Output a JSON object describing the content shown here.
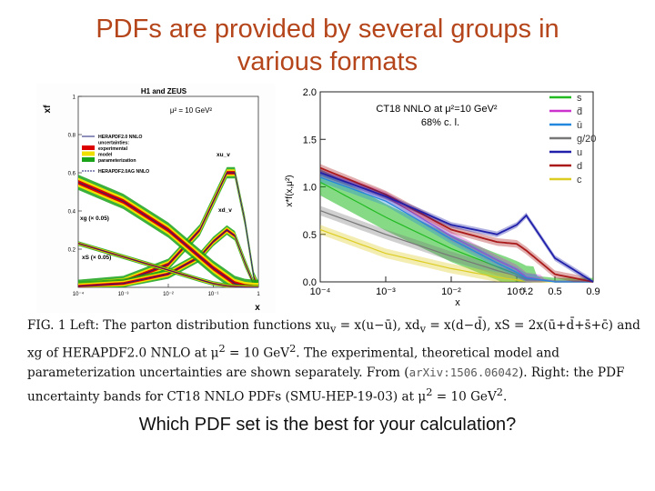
{
  "slide": {
    "title_line1": "PDFs are provided by several groups in",
    "title_line2": "various formats",
    "question": "Which PDF set is the best for your calculation?"
  },
  "caption": {
    "part1": "FIG. 1 Left: The parton distribution functions xu",
    "part1b": "v",
    "part1c": " = x(u−ū), xd",
    "part1d": "v",
    "part1e": " = x(d−d̄), xS = 2x(ū+d̄+s̄+c̄) and xg of HERAPDF2.0 NNLO at μ",
    "part1f": "2",
    "part1g": " = 10 GeV",
    "part1h": "2",
    "part1i": ". The experimental, theoretical model and parameterization uncertainties are shown separately. From (",
    "arxiv": "arXiv:1506.06042",
    "part2": "). Right: the PDF uncertainty bands for CT18 NNLO PDFs (SMU-HEP-19-03) at μ",
    "part2b": "2",
    "part2c": " = 10 GeV",
    "part2d": "2",
    "part2e": "."
  },
  "chart_data": [
    {
      "type": "line",
      "title": "H1 and ZEUS",
      "subtitle": "μ² = 10 GeV²",
      "xlabel": "x",
      "ylabel": "xf",
      "x_scale": "log",
      "xlim": [
        0.0001,
        1
      ],
      "ylim": [
        0,
        1
      ],
      "x_ticks": [
        "10⁻⁴",
        "10⁻³",
        "10⁻²",
        "10⁻¹",
        "1"
      ],
      "y_ticks": [
        "0.2",
        "0.4",
        "0.6",
        "0.8",
        "1"
      ],
      "legend": [
        "HERAPDF2.0 NNLO",
        "uncertainties:",
        "experimental",
        "model",
        "parameterization",
        "HERAPDF2.0AG NNLO"
      ],
      "legend_colors": [
        "#1f1f7a",
        "#000000",
        "#dd0000",
        "#f0e000",
        "#19a319",
        "#1f1f7a"
      ],
      "annotations": [
        "xu_v",
        "xd_v",
        "xg (× 0.05)",
        "xS (× 0.05)"
      ],
      "series": [
        {
          "name": "xu_v",
          "x": [
            0.0001,
            0.001,
            0.01,
            0.05,
            0.1,
            0.2,
            0.3,
            0.5,
            0.8,
            1.0
          ],
          "values": [
            0.01,
            0.03,
            0.12,
            0.3,
            0.45,
            0.6,
            0.6,
            0.35,
            0.05,
            0.0
          ]
        },
        {
          "name": "xd_v",
          "x": [
            0.0001,
            0.001,
            0.01,
            0.05,
            0.1,
            0.2,
            0.3,
            0.5,
            0.8,
            1.0
          ],
          "values": [
            0.005,
            0.02,
            0.07,
            0.16,
            0.24,
            0.3,
            0.27,
            0.13,
            0.01,
            0.0
          ]
        },
        {
          "name": "xg (× 0.05)",
          "x": [
            0.0001,
            0.001,
            0.01,
            0.05,
            0.1,
            0.2,
            0.3,
            0.5,
            0.8,
            1.0
          ],
          "values": [
            0.55,
            0.45,
            0.3,
            0.16,
            0.1,
            0.05,
            0.02,
            0.005,
            0.0,
            0.0
          ]
        },
        {
          "name": "xS (× 0.05)",
          "x": [
            0.0001,
            0.001,
            0.01,
            0.05,
            0.1,
            0.2,
            0.3,
            0.5,
            0.8,
            1.0
          ],
          "values": [
            0.23,
            0.16,
            0.09,
            0.04,
            0.02,
            0.008,
            0.004,
            0.001,
            0.0,
            0.0
          ]
        }
      ]
    },
    {
      "type": "line",
      "title": "CT18 NNLO at μ²=10 GeV²",
      "subtitle": "68% c. l.",
      "xlabel": "x",
      "ylabel": "x*f(x,μ²)",
      "xlim": [
        0.0001,
        0.9
      ],
      "ylim": [
        0,
        2.0
      ],
      "x_ticks": [
        "10⁻⁴",
        "10⁻³",
        "10⁻²",
        "10⁻¹",
        "0.2",
        "0.5",
        "0.9"
      ],
      "y_ticks": [
        "0.0",
        "0.5",
        "1.0",
        "1.5",
        "2.0"
      ],
      "legend_position": "top-right",
      "legend": [
        "s",
        "d̄",
        "ū",
        "g/20",
        "u",
        "d",
        "c"
      ],
      "series": [
        {
          "name": "s",
          "color": "#22bb22",
          "x": [
            0.0001,
            0.001,
            0.01,
            0.05,
            0.1,
            0.2,
            0.5,
            0.9
          ],
          "values": [
            1.05,
            0.68,
            0.35,
            0.16,
            0.08,
            0.03,
            0.0,
            0.0
          ]
        },
        {
          "name": "d̄",
          "color": "#cc33cc",
          "x": [
            0.0001,
            0.001,
            0.01,
            0.05,
            0.1,
            0.2,
            0.5,
            0.9
          ],
          "values": [
            1.15,
            0.9,
            0.48,
            0.23,
            0.13,
            0.05,
            0.0,
            0.0
          ]
        },
        {
          "name": "ū",
          "color": "#2288dd",
          "x": [
            0.0001,
            0.001,
            0.01,
            0.05,
            0.1,
            0.2,
            0.5,
            0.9
          ],
          "values": [
            1.1,
            0.85,
            0.45,
            0.2,
            0.1,
            0.04,
            0.0,
            0.0
          ]
        },
        {
          "name": "g/20",
          "color": "#777777",
          "x": [
            0.0001,
            0.001,
            0.01,
            0.05,
            0.1,
            0.2,
            0.5,
            0.9
          ],
          "values": [
            0.75,
            0.5,
            0.27,
            0.12,
            0.06,
            0.02,
            0.0,
            0.0
          ]
        },
        {
          "name": "u",
          "color": "#2020aa",
          "x": [
            0.0001,
            0.001,
            0.01,
            0.05,
            0.1,
            0.2,
            0.5,
            0.9
          ],
          "values": [
            1.15,
            0.9,
            0.6,
            0.5,
            0.6,
            0.7,
            0.25,
            0.0
          ]
        },
        {
          "name": "d",
          "color": "#aa1a1a",
          "x": [
            0.0001,
            0.001,
            0.01,
            0.05,
            0.1,
            0.2,
            0.5,
            0.9
          ],
          "values": [
            1.2,
            0.92,
            0.55,
            0.42,
            0.4,
            0.33,
            0.08,
            0.0
          ]
        },
        {
          "name": "c",
          "color": "#ddcc22",
          "x": [
            0.0001,
            0.001,
            0.01,
            0.05,
            0.1,
            0.2,
            0.5,
            0.9
          ],
          "values": [
            0.55,
            0.3,
            0.14,
            0.05,
            0.02,
            0.005,
            0.0,
            0.0
          ]
        }
      ]
    }
  ]
}
